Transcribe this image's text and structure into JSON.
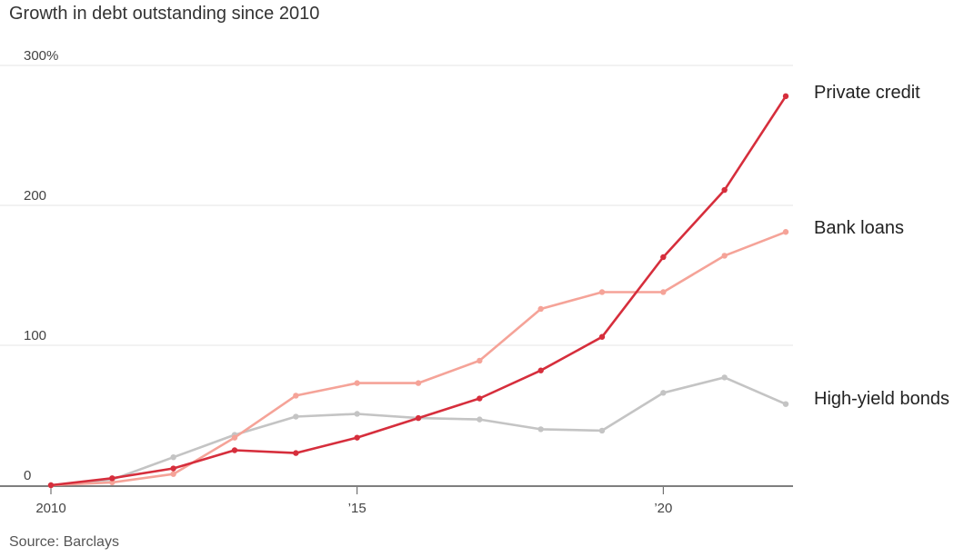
{
  "title": "Growth in debt outstanding since 2010",
  "source": "Source: Barclays",
  "chart_data": {
    "type": "line",
    "title": "Growth in debt outstanding since 2010",
    "x": [
      2010,
      2011,
      2012,
      2013,
      2014,
      2015,
      2016,
      2017,
      2018,
      2019,
      2020,
      2021,
      2022
    ],
    "ylim": [
      0,
      300
    ],
    "xlim": [
      2010,
      2022
    ],
    "y_ticks": [
      {
        "value": 0,
        "label": "0"
      },
      {
        "value": 100,
        "label": "100"
      },
      {
        "value": 200,
        "label": "200"
      },
      {
        "value": 300,
        "label": "300%"
      }
    ],
    "x_ticks": [
      {
        "value": 2010,
        "label": "2010"
      },
      {
        "value": 2015,
        "label": "’15"
      },
      {
        "value": 2020,
        "label": "’20"
      }
    ],
    "grid": true,
    "series": [
      {
        "name": "High-yield bonds",
        "color": "#c4c4c4",
        "values": [
          0,
          4,
          20,
          36,
          49,
          51,
          48,
          47,
          40,
          39,
          66,
          77,
          58
        ]
      },
      {
        "name": "Bank loans",
        "color": "#f5a398",
        "values": [
          0,
          2,
          8,
          34,
          64,
          73,
          73,
          89,
          126,
          138,
          138,
          164,
          181
        ]
      },
      {
        "name": "Private credit",
        "color": "#d62e3c",
        "values": [
          0,
          5,
          12,
          25,
          23,
          34,
          48,
          62,
          82,
          106,
          163,
          211,
          278
        ]
      }
    ]
  }
}
